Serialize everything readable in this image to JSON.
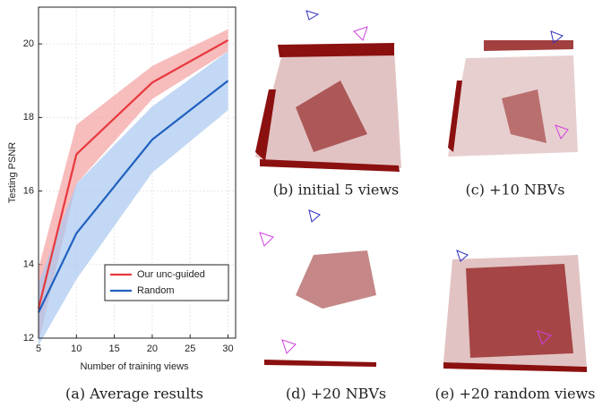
{
  "chart_data": {
    "type": "line",
    "x": [
      5,
      10,
      20,
      30
    ],
    "series": [
      {
        "name": "Our unc-guided",
        "color": "#e8383d",
        "band_color": "#f4a0a0",
        "values": [
          12.8,
          17.0,
          18.95,
          20.1
        ],
        "lower": [
          11.9,
          16.2,
          18.5,
          19.8
        ],
        "upper": [
          13.9,
          17.8,
          19.4,
          20.4
        ]
      },
      {
        "name": "Random",
        "color": "#2060c0",
        "band_color": "#a8c8f0",
        "values": [
          12.7,
          14.85,
          17.4,
          19.0
        ],
        "lower": [
          11.8,
          13.6,
          16.5,
          18.2
        ],
        "upper": [
          13.5,
          16.2,
          18.3,
          19.8
        ]
      }
    ],
    "xlim": [
      5,
      31
    ],
    "ylim": [
      12,
      21
    ],
    "xticks": [
      5,
      10,
      15,
      20,
      25,
      30
    ],
    "yticks": [
      12,
      14,
      16,
      18,
      20
    ],
    "xlabel": "Number of training views",
    "ylabel": "Testing PSNR",
    "grid": true,
    "legend": "lower right"
  },
  "captions": [
    "(a) Average results",
    "(b) initial 5 views",
    "(c) +10 NBVs",
    "(d) +20 NBVs",
    "(e) +20 random views"
  ]
}
